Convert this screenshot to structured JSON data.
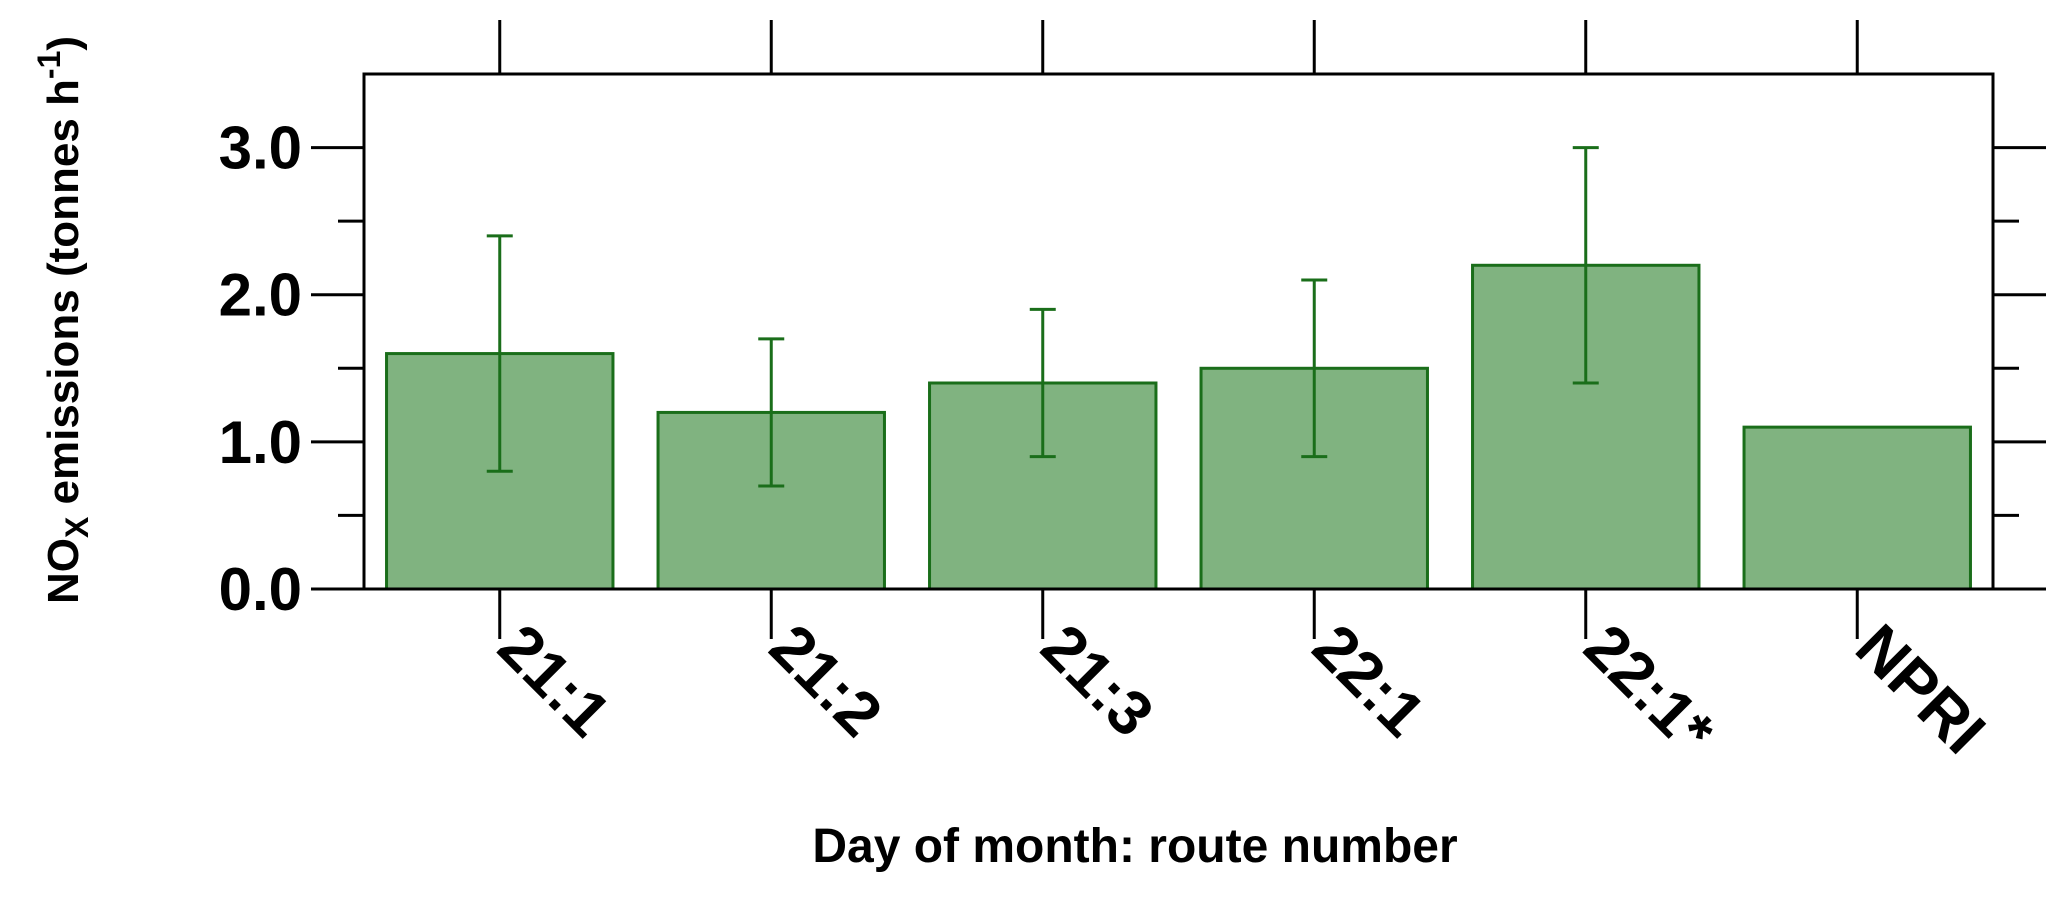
{
  "chart_data": {
    "type": "bar",
    "ylabel": {
      "main": "NO",
      "sub": "X",
      "rest": " emissions (tonnes h",
      "sup": "-1",
      "end": ")"
    },
    "xlabel": "Day of month: route number",
    "categories": [
      "21:1",
      "21:2",
      "21:3",
      "22:1",
      "22:1*",
      "NPRI"
    ],
    "values": [
      1.6,
      1.2,
      1.4,
      1.5,
      2.2,
      1.1
    ],
    "errors": [
      0.8,
      0.5,
      0.5,
      0.6,
      0.8,
      null
    ],
    "color": "#80b380",
    "edgecolor": "#1a6e1a",
    "ylim": [
      0,
      3.5
    ],
    "yticks": [
      {
        "value": 0,
        "label": "0.0"
      },
      {
        "value": 1,
        "label": "1.0"
      },
      {
        "value": 2,
        "label": "2.0"
      },
      {
        "value": 3,
        "label": "3.0"
      }
    ],
    "yminorticks": [
      0.5,
      1.5,
      2.5
    ]
  }
}
